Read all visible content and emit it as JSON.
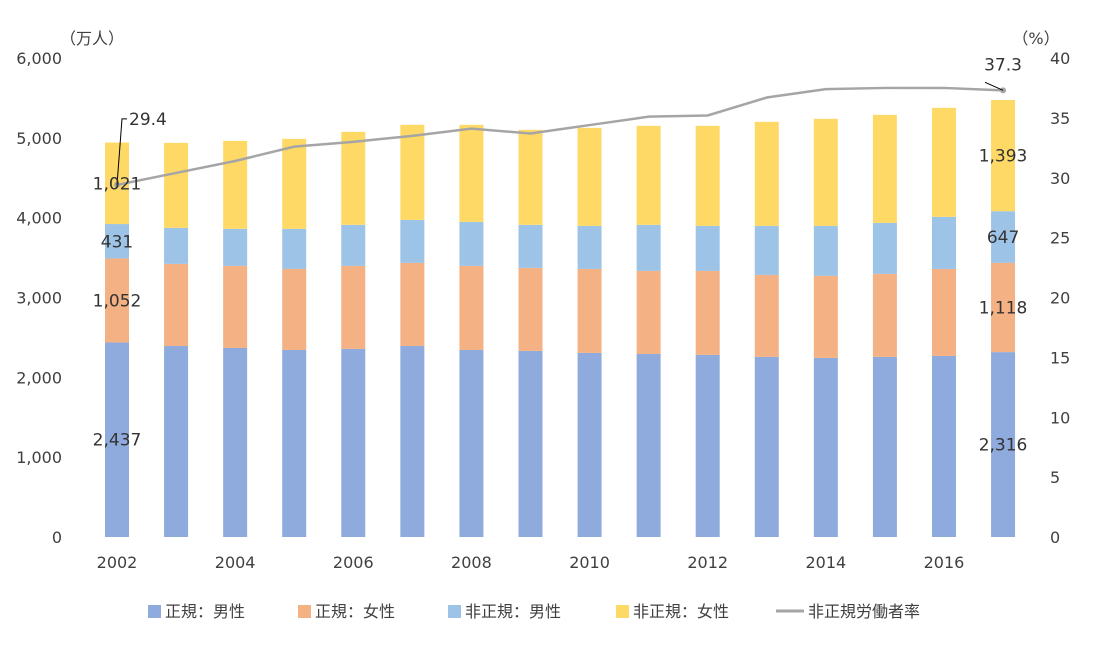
{
  "chart_data": {
    "type": "bar",
    "stacked": true,
    "categories": [
      2002,
      2003,
      2004,
      2005,
      2006,
      2007,
      2008,
      2009,
      2010,
      2011,
      2012,
      2013,
      2014,
      2015,
      2016,
      2017
    ],
    "x_tick_labels": [
      "2002",
      "2004",
      "2006",
      "2008",
      "2010",
      "2012",
      "2014",
      "2016"
    ],
    "y_left": {
      "unit_label": "（万人）",
      "range": [
        0,
        6000
      ],
      "ticks": [
        "0",
        "1,000",
        "2,000",
        "3,000",
        "4,000",
        "5,000",
        "6,000"
      ]
    },
    "y_right": {
      "unit_label": "（%）",
      "range": [
        0,
        40
      ],
      "ticks": [
        "0",
        "5",
        "10",
        "15",
        "20",
        "25",
        "30",
        "35",
        "40"
      ]
    },
    "grid": false,
    "legend_position": "bottom",
    "series": [
      {
        "name": "正規：男性",
        "kind": "bar",
        "color": "#8faadc",
        "values": [
          2437,
          2393,
          2368,
          2343,
          2356,
          2393,
          2343,
          2331,
          2306,
          2293,
          2281,
          2256,
          2243,
          2256,
          2268,
          2316
        ],
        "labels": {
          "2002": "2,437",
          "2017": "2,316"
        }
      },
      {
        "name": "正規：女性",
        "kind": "bar",
        "color": "#f4b183",
        "values": [
          1052,
          1028,
          1028,
          1015,
          1040,
          1041,
          1053,
          1040,
          1052,
          1040,
          1052,
          1027,
          1028,
          1040,
          1090,
          1118
        ],
        "labels": {
          "2002": "1,052",
          "2017": "1,118"
        }
      },
      {
        "name": "非正規：男性",
        "kind": "bar",
        "color": "#9dc3e6",
        "values": [
          431,
          451,
          464,
          502,
          514,
          538,
          551,
          539,
          539,
          577,
          564,
          614,
          626,
          639,
          652,
          647
        ],
        "labels": {
          "2002": "431",
          "2017": "647"
        }
      },
      {
        "name": "非正規：女性",
        "kind": "bar",
        "color": "#ffd966",
        "values": [
          1021,
          1065,
          1102,
          1127,
          1165,
          1191,
          1216,
          1190,
          1228,
          1240,
          1253,
          1303,
          1341,
          1353,
          1366,
          1393
        ],
        "labels": {
          "2002": "1,021",
          "2017": "1,393"
        }
      },
      {
        "name": "非正規労働者率",
        "kind": "line",
        "axis": "right",
        "color": "#a5a5a5",
        "values": [
          29.4,
          30.4,
          31.4,
          32.6,
          33.0,
          33.5,
          34.1,
          33.7,
          34.4,
          35.1,
          35.2,
          36.7,
          37.4,
          37.5,
          37.5,
          37.3
        ],
        "labels": {
          "2002": "29.4",
          "2017": "37.3"
        }
      }
    ]
  }
}
